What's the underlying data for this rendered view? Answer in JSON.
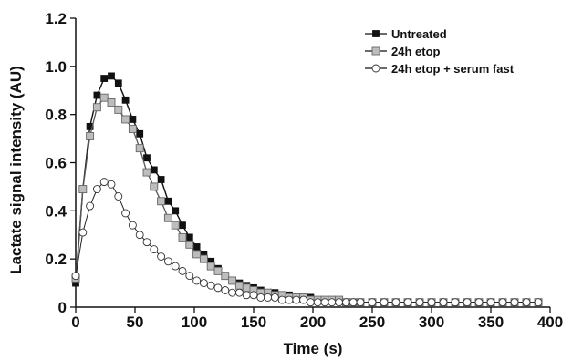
{
  "chart_data": {
    "type": "scatter",
    "title": "",
    "xlabel": "Time (s)",
    "ylabel": "Lactate signal intensity (AU)",
    "xlim": [
      0,
      400
    ],
    "ylim": [
      0,
      1.2
    ],
    "xticks": [
      "0",
      "50",
      "100",
      "150",
      "200",
      "250",
      "300",
      "350",
      "400"
    ],
    "yticks": [
      "0",
      "0.2",
      "0.4",
      "0.6",
      "0.8",
      "1.0",
      "1.2"
    ],
    "grid": false,
    "legend_position": "top-right",
    "series": [
      {
        "name": "Untreated",
        "marker": "filled-square",
        "color": "#111111",
        "x": [
          0,
          6,
          12,
          18,
          24,
          30,
          36,
          42,
          48,
          54,
          60,
          66,
          72,
          78,
          84,
          90,
          96,
          102,
          108,
          114,
          120,
          126,
          132,
          138,
          144,
          150,
          156,
          162,
          168,
          174,
          180,
          186,
          192,
          198,
          204,
          210,
          216,
          222,
          228,
          234,
          240,
          250,
          260,
          270,
          280,
          290,
          300,
          310,
          320,
          330,
          340,
          350,
          360,
          370,
          380,
          390
        ],
        "y": [
          0.1,
          0.49,
          0.75,
          0.88,
          0.95,
          0.96,
          0.93,
          0.86,
          0.78,
          0.72,
          0.62,
          0.57,
          0.53,
          0.44,
          0.4,
          0.34,
          0.29,
          0.25,
          0.22,
          0.19,
          0.16,
          0.13,
          0.11,
          0.1,
          0.09,
          0.08,
          0.07,
          0.06,
          0.06,
          0.05,
          0.05,
          0.04,
          0.04,
          0.04,
          0.03,
          0.03,
          0.03,
          0.03,
          0.02,
          0.02,
          0.02,
          0.02,
          0.02,
          0.02,
          0.02,
          0.02,
          0.02,
          0.02,
          0.02,
          0.02,
          0.02,
          0.02,
          0.02,
          0.02,
          0.02,
          0.02
        ]
      },
      {
        "name": "24h etop",
        "marker": "gray-square",
        "color": "#9a9a9a",
        "x": [
          0,
          6,
          12,
          18,
          24,
          30,
          36,
          42,
          48,
          54,
          60,
          66,
          72,
          78,
          84,
          90,
          96,
          102,
          108,
          114,
          120,
          126,
          132,
          138,
          144,
          150,
          156,
          162,
          168,
          174,
          180,
          186,
          192,
          198,
          204,
          210,
          216,
          222,
          228,
          234,
          240,
          250,
          260,
          270,
          280,
          290,
          300,
          310,
          320,
          330,
          340,
          350,
          360,
          370,
          380,
          390
        ],
        "y": [
          0.12,
          0.49,
          0.71,
          0.83,
          0.87,
          0.85,
          0.82,
          0.78,
          0.74,
          0.66,
          0.56,
          0.5,
          0.44,
          0.37,
          0.34,
          0.29,
          0.26,
          0.22,
          0.2,
          0.17,
          0.15,
          0.13,
          0.11,
          0.09,
          0.08,
          0.07,
          0.06,
          0.06,
          0.05,
          0.05,
          0.04,
          0.04,
          0.04,
          0.03,
          0.03,
          0.03,
          0.03,
          0.03,
          0.02,
          0.02,
          0.02,
          0.02,
          0.02,
          0.02,
          0.02,
          0.02,
          0.02,
          0.02,
          0.02,
          0.02,
          0.02,
          0.02,
          0.02,
          0.02,
          0.02,
          0.02
        ]
      },
      {
        "name": "24h etop + serum fast",
        "marker": "open-circle",
        "color": "#222222",
        "x": [
          0,
          6,
          12,
          18,
          24,
          30,
          36,
          42,
          48,
          54,
          60,
          66,
          72,
          78,
          84,
          90,
          96,
          102,
          108,
          114,
          120,
          126,
          132,
          138,
          144,
          150,
          156,
          162,
          168,
          174,
          180,
          186,
          192,
          198,
          204,
          210,
          216,
          222,
          228,
          234,
          240,
          250,
          260,
          270,
          280,
          290,
          300,
          310,
          320,
          330,
          340,
          350,
          360,
          370,
          380,
          390
        ],
        "y": [
          0.13,
          0.31,
          0.42,
          0.49,
          0.52,
          0.51,
          0.46,
          0.39,
          0.34,
          0.3,
          0.27,
          0.24,
          0.21,
          0.19,
          0.17,
          0.15,
          0.13,
          0.11,
          0.1,
          0.09,
          0.08,
          0.07,
          0.06,
          0.06,
          0.05,
          0.05,
          0.04,
          0.04,
          0.04,
          0.03,
          0.03,
          0.03,
          0.03,
          0.02,
          0.02,
          0.02,
          0.02,
          0.02,
          0.02,
          0.02,
          0.02,
          0.02,
          0.02,
          0.02,
          0.02,
          0.02,
          0.02,
          0.02,
          0.02,
          0.02,
          0.02,
          0.02,
          0.02,
          0.02,
          0.02,
          0.02
        ]
      }
    ]
  }
}
